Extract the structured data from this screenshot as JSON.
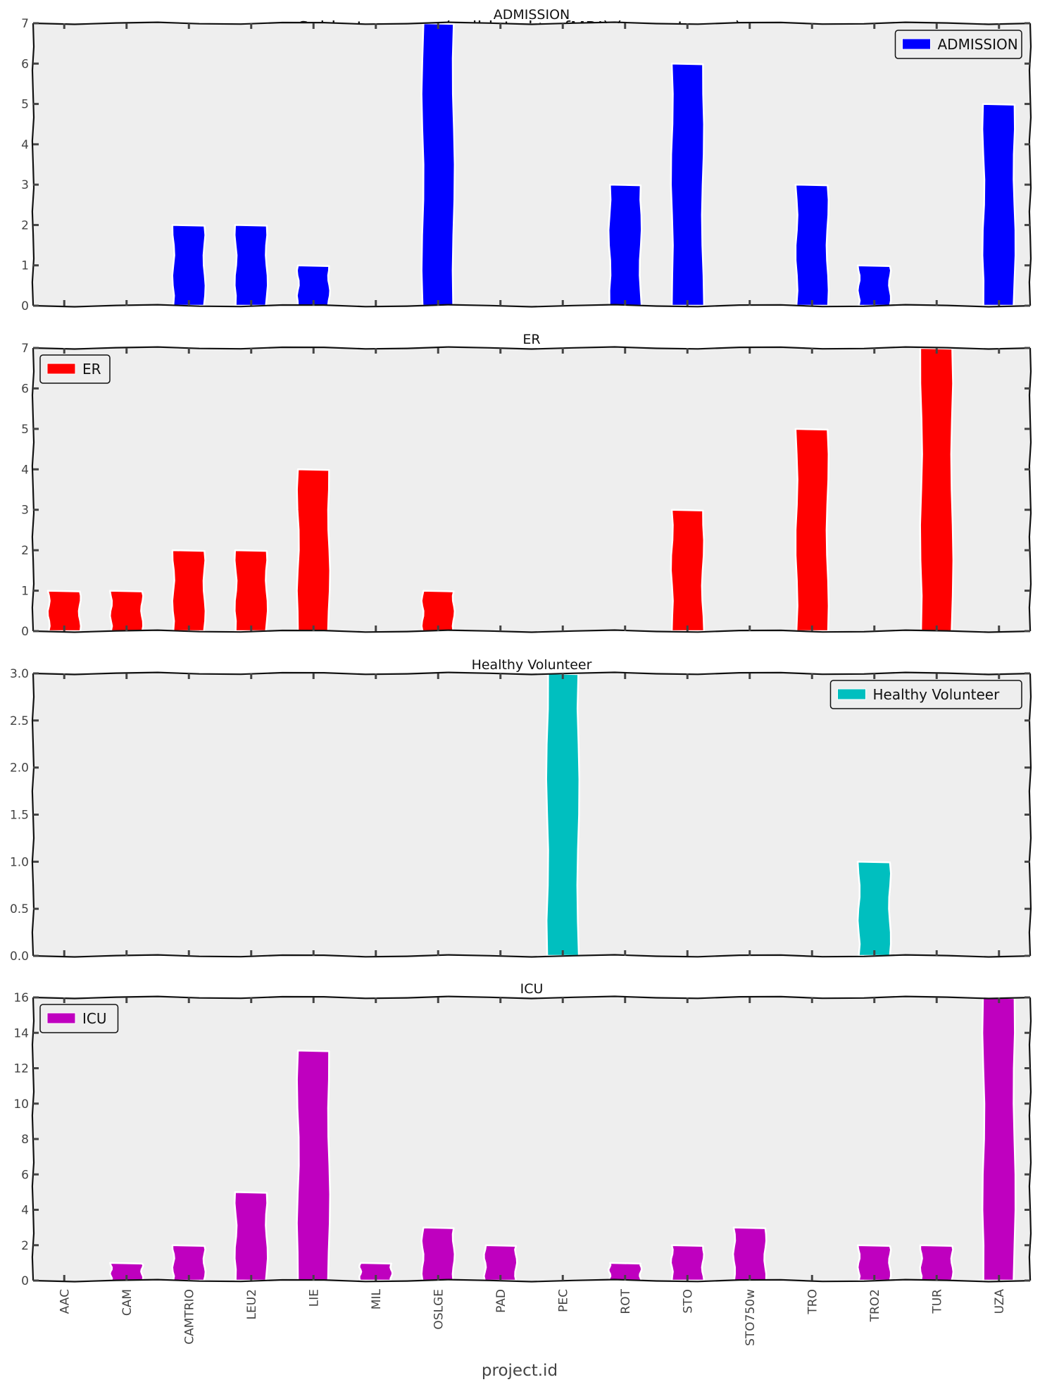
{
  "figure": {
    "suptitle": "Subjects groups (validated+rsfMRI) (per category)",
    "xlabel": "project.id",
    "background": "#eeeeee"
  },
  "chart_data": {
    "type": "bar",
    "categories": [
      "AAC",
      "CAM",
      "CAMTRIO",
      "LEU2",
      "LIE",
      "MIL",
      "OSLGE",
      "PAD",
      "PEC",
      "ROT",
      "STO",
      "STO750w",
      "TRO",
      "TRO2",
      "TUR",
      "UZA"
    ],
    "grid": false,
    "panels": [
      {
        "title": "ADMISSION",
        "legend": "ADMISSION",
        "legend_position": "top-right",
        "color": "#0000ff",
        "ylim": [
          0,
          7
        ],
        "yticks": [
          "0",
          "1",
          "2",
          "3",
          "4",
          "5",
          "6",
          "7"
        ],
        "ytick_values": [
          0,
          1,
          2,
          3,
          4,
          5,
          6,
          7
        ],
        "values": [
          0,
          0,
          2,
          2,
          1,
          0,
          7,
          0,
          0,
          3,
          6,
          0,
          3,
          1,
          0,
          5
        ]
      },
      {
        "title": "ER",
        "legend": "ER",
        "legend_position": "top-left",
        "color": "#ff0000",
        "ylim": [
          0,
          7
        ],
        "yticks": [
          "0",
          "1",
          "2",
          "3",
          "4",
          "5",
          "6",
          "7"
        ],
        "ytick_values": [
          0,
          1,
          2,
          3,
          4,
          5,
          6,
          7
        ],
        "values": [
          1,
          1,
          2,
          2,
          4,
          0,
          1,
          0,
          0,
          0,
          3,
          0,
          5,
          0,
          7,
          0
        ]
      },
      {
        "title": "Healthy Volunteer",
        "legend": "Healthy Volunteer",
        "legend_position": "top-right",
        "color": "#00bfbf",
        "ylim": [
          0,
          3
        ],
        "yticks": [
          "0.0",
          "0.5",
          "1.0",
          "1.5",
          "2.0",
          "2.5",
          "3.0"
        ],
        "ytick_values": [
          0,
          0.5,
          1,
          1.5,
          2,
          2.5,
          3
        ],
        "values": [
          0,
          0,
          0,
          0,
          0,
          0,
          0,
          0,
          3,
          0,
          0,
          0,
          0,
          1,
          0,
          0
        ]
      },
      {
        "title": "ICU",
        "legend": "ICU",
        "legend_position": "top-left",
        "color": "#bf00bf",
        "ylim": [
          0,
          16
        ],
        "yticks": [
          "0",
          "2",
          "4",
          "6",
          "8",
          "10",
          "12",
          "14",
          "16"
        ],
        "ytick_values": [
          0,
          2,
          4,
          6,
          8,
          10,
          12,
          14,
          16
        ],
        "values": [
          0,
          1,
          2,
          5,
          13,
          1,
          3,
          2,
          0,
          1,
          2,
          3,
          0,
          2,
          2,
          16
        ]
      }
    ]
  }
}
